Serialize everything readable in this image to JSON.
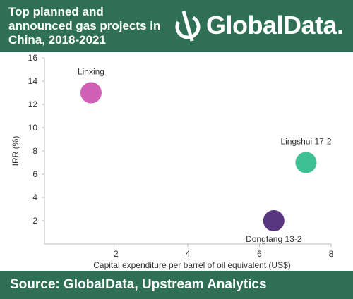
{
  "header": {
    "title": "Top planned and announced gas projects in China, 2018-2021",
    "logo_text": "GlobalData."
  },
  "footer": {
    "source": "Source: GlobalData, Upstream Analytics"
  },
  "colors": {
    "brand": "#2e6f56",
    "axis": "#bbbbbb"
  },
  "chart_data": {
    "type": "scatter",
    "title": "Top planned and announced gas projects in China, 2018-2021",
    "xlabel": "Capital expenditure per barrel of oil equivalent (US$)",
    "ylabel": "IRR (%)",
    "xlim": [
      0,
      8
    ],
    "ylim": [
      0,
      16
    ],
    "x_ticks": [
      2,
      4,
      6,
      8
    ],
    "y_ticks": [
      2,
      4,
      6,
      8,
      10,
      12,
      14,
      16
    ],
    "grid": false,
    "points": [
      {
        "label": "Linxing",
        "x": 1.3,
        "y": 13.0,
        "color": "#d060b6",
        "label_pos": "above"
      },
      {
        "label": "Lingshui 17-2",
        "x": 7.3,
        "y": 7.0,
        "color": "#3fbf94",
        "label_pos": "above"
      },
      {
        "label": "Dongfang 13-2",
        "x": 6.4,
        "y": 2.0,
        "color": "#59357f",
        "label_pos": "below"
      }
    ]
  }
}
